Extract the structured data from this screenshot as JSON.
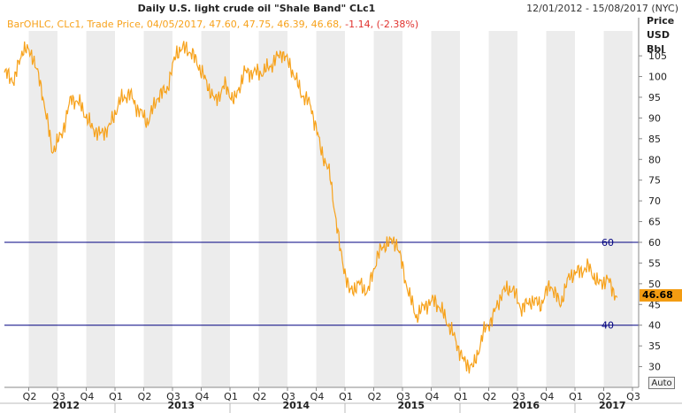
{
  "chart_data": {
    "type": "line",
    "title": "Daily U.S. light crude oil \"Shale Band\"  CLc1",
    "date_range": "12/01/2012 - 15/08/2017 (NYC)",
    "legend": {
      "series_text": "BarOHLC, CLc1, Trade Price, 04/05/2017, 47.60, 47.75, 46.39, 46.68,",
      "change_text": "-1.14, (-2.38%)"
    },
    "ylabel": [
      "Price",
      "USD",
      "Bbl"
    ],
    "ylim": [
      25,
      111
    ],
    "y_ticks": [
      30,
      35,
      40,
      45,
      50,
      55,
      60,
      65,
      70,
      75,
      80,
      85,
      90,
      95,
      100,
      105
    ],
    "x_quarter_labels": [
      "Q2",
      "Q3",
      "Q4",
      "Q1",
      "Q2",
      "Q3",
      "Q4",
      "Q1",
      "Q2",
      "Q3",
      "Q4",
      "Q1",
      "Q2",
      "Q3",
      "Q4",
      "Q1",
      "Q2",
      "Q3",
      "Q4",
      "Q1",
      "Q2",
      "Q3"
    ],
    "x_year_labels": [
      "2012",
      "2013",
      "2014",
      "2015",
      "2016",
      "2017"
    ],
    "reference_lines": [
      {
        "label": "60",
        "value": 60
      },
      {
        "label": "40",
        "value": 40
      }
    ],
    "last_value": "46.68",
    "auto_label": "Auto",
    "grid": "alternating quarter shading",
    "series": [
      {
        "name": "CLc1",
        "color": "#f7a21b",
        "x": [
          "2012-01",
          "2012-02",
          "2012-03",
          "2012-04",
          "2012-05",
          "2012-06",
          "2012-07",
          "2012-08",
          "2012-09",
          "2012-10",
          "2012-11",
          "2012-12",
          "2013-01",
          "2013-02",
          "2013-03",
          "2013-04",
          "2013-05",
          "2013-06",
          "2013-07",
          "2013-08",
          "2013-09",
          "2013-10",
          "2013-11",
          "2013-12",
          "2014-01",
          "2014-02",
          "2014-03",
          "2014-04",
          "2014-05",
          "2014-06",
          "2014-07",
          "2014-08",
          "2014-09",
          "2014-10",
          "2014-11",
          "2014-12",
          "2015-01",
          "2015-02",
          "2015-03",
          "2015-04",
          "2015-05",
          "2015-06",
          "2015-07",
          "2015-08",
          "2015-09",
          "2015-10",
          "2015-11",
          "2015-12",
          "2016-01",
          "2016-02",
          "2016-03",
          "2016-04",
          "2016-05",
          "2016-06",
          "2016-07",
          "2016-08",
          "2016-09",
          "2016-10",
          "2016-11",
          "2016-12",
          "2017-01",
          "2017-02",
          "2017-03",
          "2017-04",
          "2017-05"
        ],
        "values": [
          101,
          99,
          107,
          105,
          96,
          82,
          86,
          95,
          93,
          88,
          86,
          88,
          94,
          96,
          92,
          89,
          95,
          97,
          106,
          107,
          104,
          99,
          94,
          98,
          94,
          101,
          101,
          101,
          103,
          106,
          102,
          96,
          93,
          83,
          76,
          59,
          48,
          50,
          48,
          57,
          60,
          60,
          50,
          42,
          45,
          46,
          42,
          37,
          31,
          30,
          38,
          42,
          48,
          49,
          44,
          46,
          45,
          50,
          45,
          52,
          53,
          54,
          50,
          51,
          46.68
        ]
      }
    ]
  }
}
